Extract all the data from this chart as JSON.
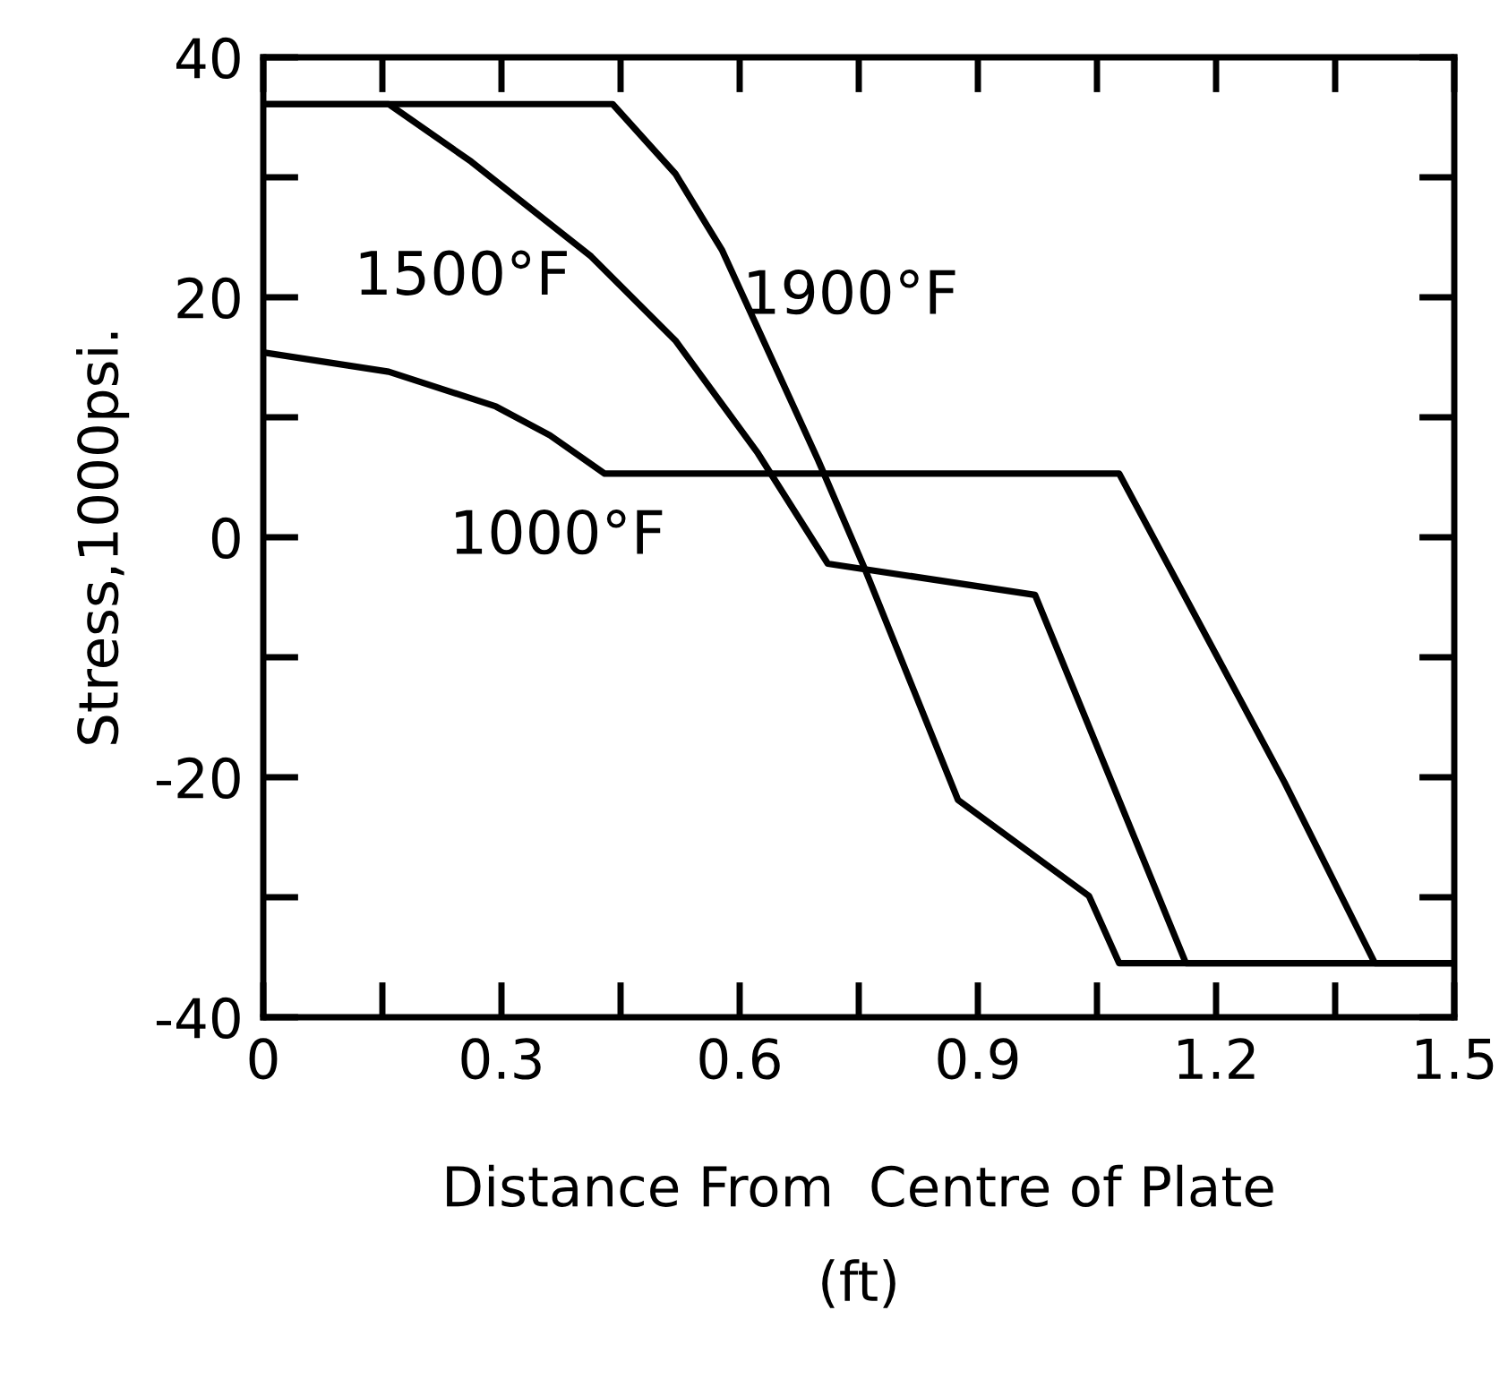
{
  "chart_data": {
    "type": "line",
    "xlabel": "Distance From  Centre of Plate\n(ft)",
    "ylabel": "Stress,1000psi.",
    "xlim": [
      0,
      1.5
    ],
    "ylim": [
      -40,
      40
    ],
    "xticks": [
      0,
      0.3,
      0.6,
      0.9,
      1.2,
      1.5
    ],
    "yticks": [
      -40,
      -20,
      0,
      20,
      40
    ],
    "grid": false,
    "marker": "none",
    "line_style": "solid",
    "series": [
      {
        "color": "#000000",
        "x": [
          0,
          0.158,
          0.293,
          0.361,
          0.43,
          1.078,
          1.286,
          1.4,
          1.5
        ],
        "values": [
          15.4,
          13.8,
          10.9,
          8.5,
          5.3,
          5.3,
          -20.4,
          -35.5,
          -35.5
        ]
      },
      {
        "color": "#000000",
        "x": [
          0,
          0.158,
          0.262,
          0.413,
          0.519,
          0.623,
          0.711,
          0.972,
          1.162,
          1.5
        ],
        "values": [
          36.1,
          36.1,
          31.3,
          23.4,
          16.4,
          7.0,
          -2.2,
          -4.8,
          -35.5,
          -35.5
        ]
      },
      {
        "color": "#000000",
        "x": [
          0,
          0.44,
          0.519,
          0.578,
          0.699,
          0.758,
          0.875,
          1.04,
          1.078,
          1.5
        ],
        "values": [
          36.1,
          36.1,
          30.3,
          23.9,
          6.4,
          -2.7,
          -21.9,
          -29.9,
          -35.5,
          -35.5
        ]
      }
    ],
    "annotations": [
      "1500°F",
      "1900°F",
      "1000°F"
    ]
  }
}
